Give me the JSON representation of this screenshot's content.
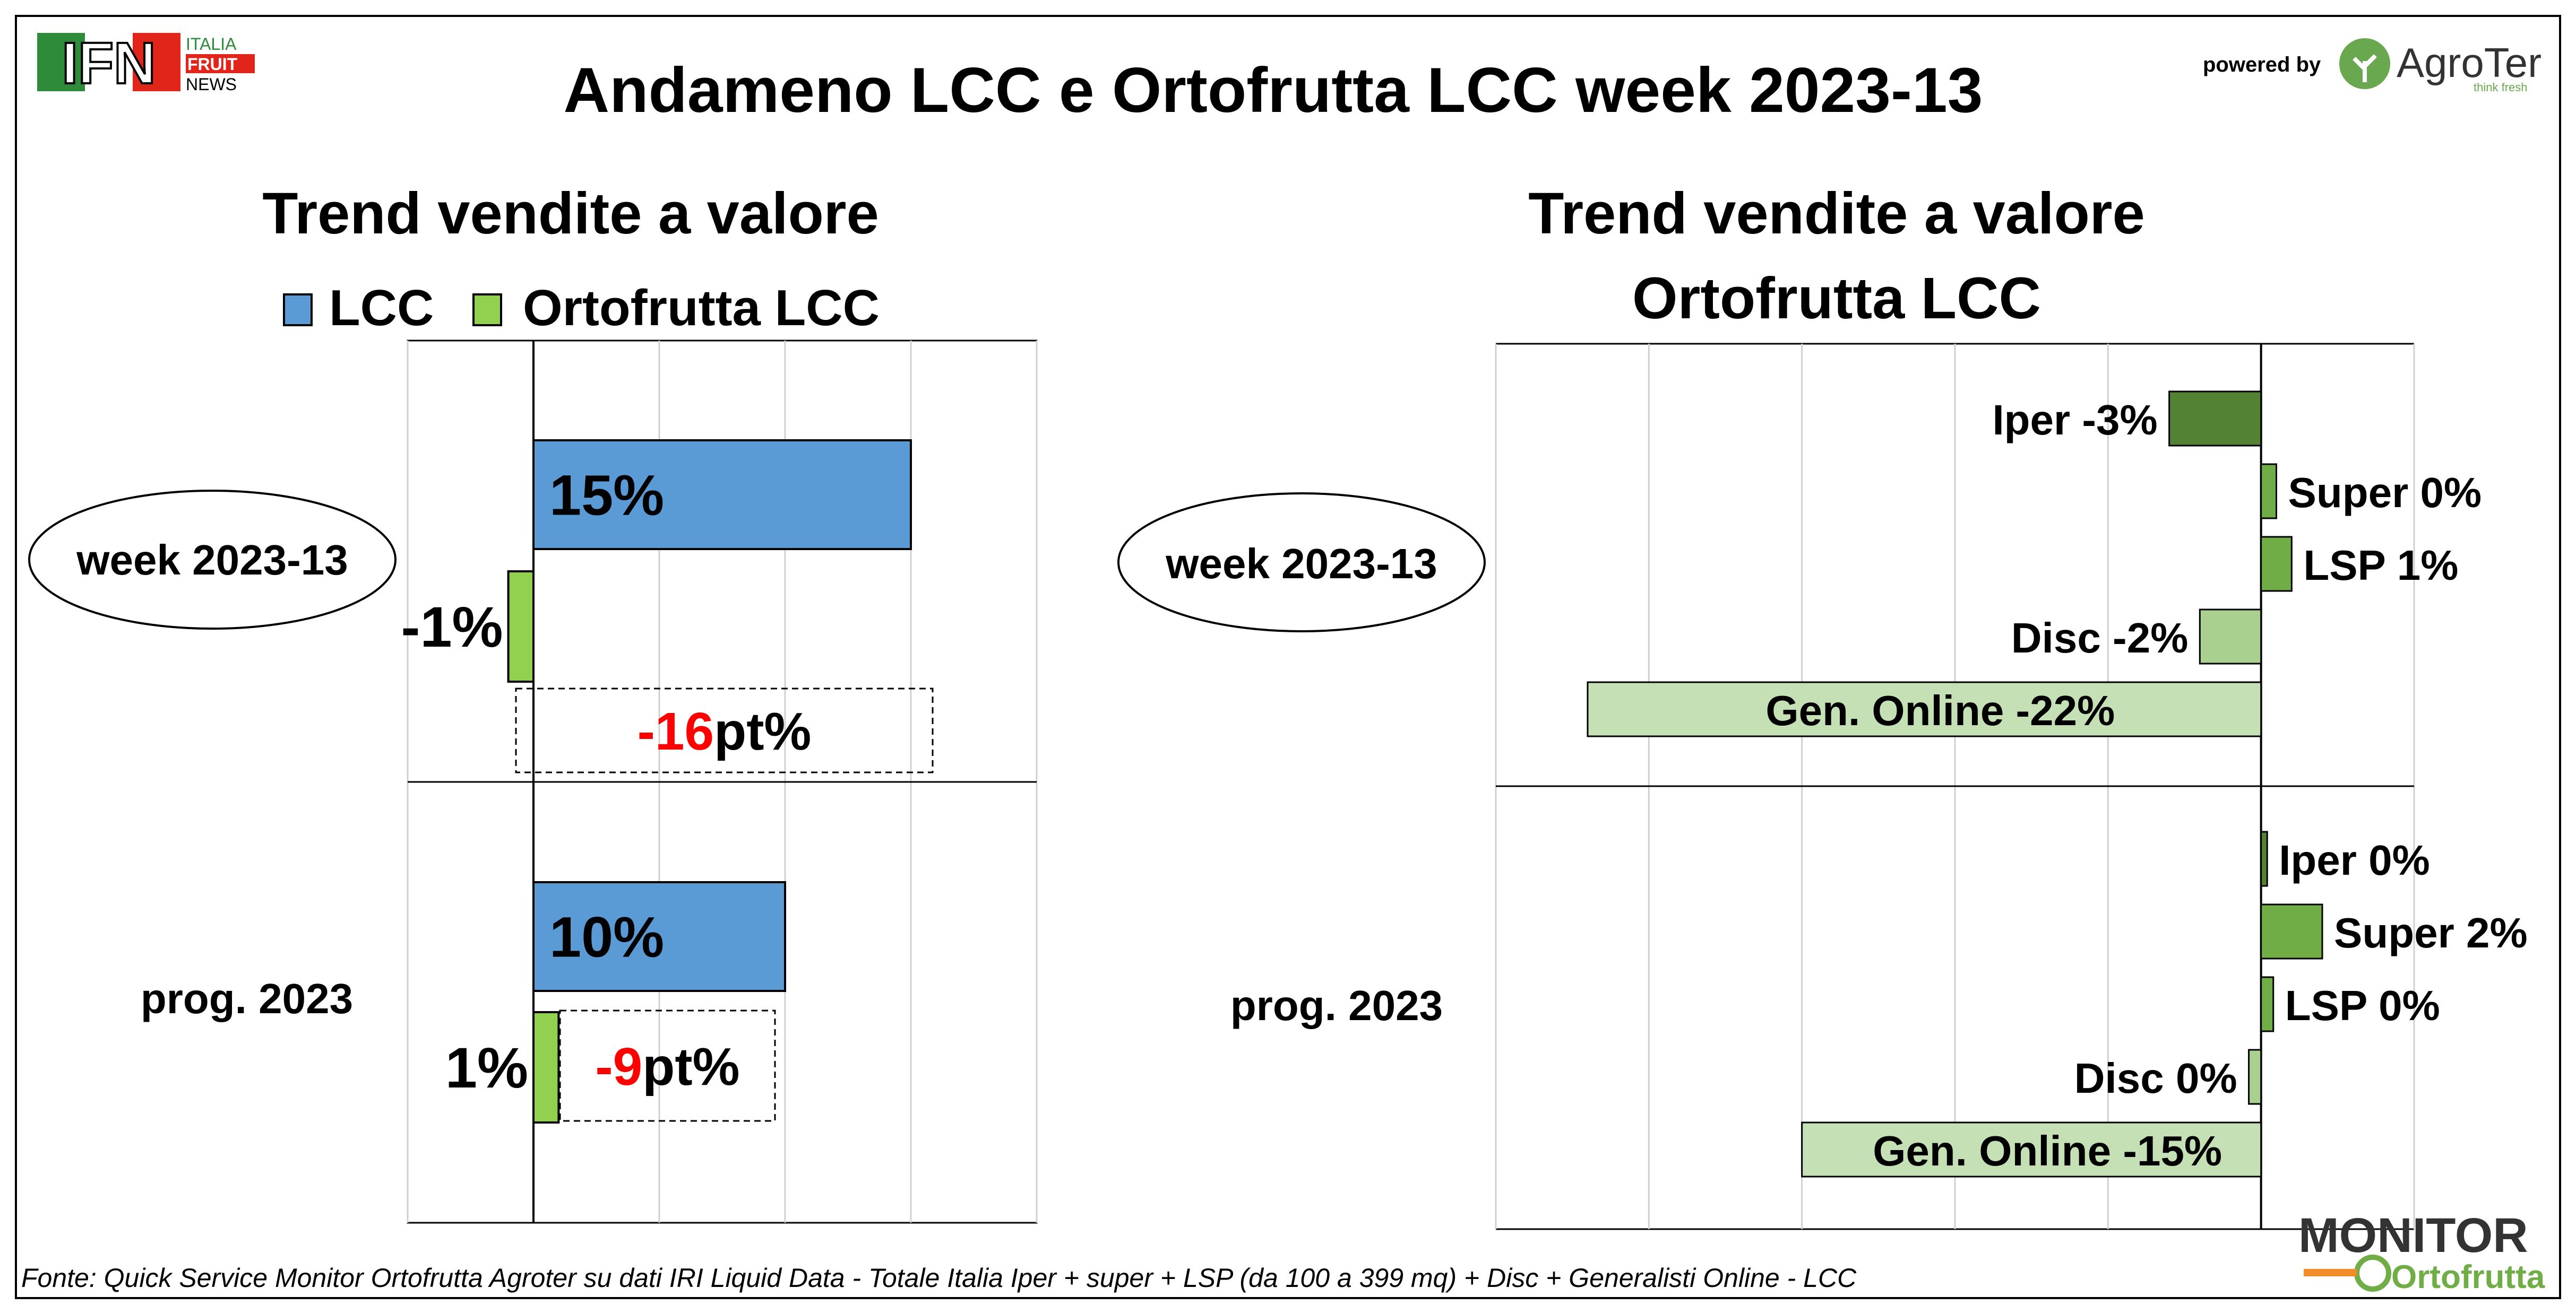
{
  "header": {
    "title": "Andameno LCC e Ortofrutta LCC week 2023-13",
    "powered_by": "powered by",
    "left_logo": {
      "main": "IFN",
      "line1": "ITALIA",
      "line2": "FRUIT",
      "line3": "NEWS"
    },
    "right_logo": {
      "name": "AgroTer",
      "tagline": "think fresh"
    }
  },
  "footer": {
    "source": "Fonte: Quick Service Monitor Ortofrutta Agroter su dati IRI Liquid Data - Totale Italia Iper + super + LSP (da 100 a 399 mq) + Disc + Generalisti Online - LCC",
    "logo": {
      "line1": "MONITOR",
      "line2": "Ortofrutta"
    }
  },
  "colors": {
    "lcc": "#5b9bd5",
    "ortofrutta": "#92d050",
    "delta_red": "#ff0000",
    "iper": "#548235",
    "super": "#70ad47",
    "lsp": "#70ad47",
    "disc": "#a9d08e",
    "online": "#c5e0b4"
  },
  "chart_data": [
    {
      "type": "bar",
      "orientation": "horizontal",
      "title": "Trend vendite a valore",
      "legend": [
        "LCC",
        "Ortofrutta LCC"
      ],
      "legend_position": "top",
      "grid": true,
      "categories": [
        "week 2023-13",
        "prog. 2023"
      ],
      "series": [
        {
          "name": "LCC",
          "values": [
            15,
            10
          ],
          "labels": [
            "15%",
            "10%"
          ]
        },
        {
          "name": "Ortofrutta LCC",
          "values": [
            -1,
            1
          ],
          "labels": [
            "-1%",
            "1%"
          ]
        }
      ],
      "deltas": [
        {
          "num": "-16",
          "unit": "pt%"
        },
        {
          "num": "-9",
          "unit": "pt%"
        }
      ],
      "xlim": [
        -5,
        20
      ]
    },
    {
      "type": "bar",
      "orientation": "horizontal",
      "title": "Trend vendite a valore",
      "title_line2": "Ortofrutta LCC",
      "grid": true,
      "categories": [
        "week 2023-13",
        "prog. 2023"
      ],
      "groups": [
        {
          "category": "week 2023-13",
          "bars": [
            {
              "channel": "Iper",
              "value": -3,
              "label": "Iper -3%"
            },
            {
              "channel": "Super",
              "value": 0.5,
              "label": "Super 0%"
            },
            {
              "channel": "LSP",
              "value": 1,
              "label": "LSP 1%"
            },
            {
              "channel": "Disc",
              "value": -2,
              "label": "Disc -2%"
            },
            {
              "channel": "Gen. Online",
              "value": -22,
              "label": "Gen. Online -22%"
            }
          ]
        },
        {
          "category": "prog. 2023",
          "bars": [
            {
              "channel": "Iper",
              "value": 0.2,
              "label": "Iper 0%"
            },
            {
              "channel": "Super",
              "value": 2,
              "label": "Super 2%"
            },
            {
              "channel": "LSP",
              "value": 0.4,
              "label": "LSP 0%"
            },
            {
              "channel": "Disc",
              "value": -0.4,
              "label": "Disc 0%"
            },
            {
              "channel": "Gen. Online",
              "value": -15,
              "label": "Gen. Online -15%"
            }
          ]
        }
      ],
      "xlim": [
        -25,
        5
      ]
    }
  ]
}
